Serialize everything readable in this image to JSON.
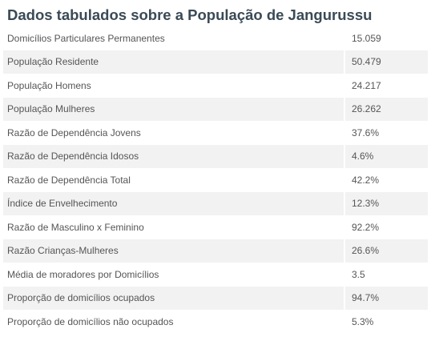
{
  "title": "Dados tabulados sobre a População de Jangurussu",
  "rows": [
    {
      "label": "Domicílios Particulares Permanentes",
      "value": "15.059"
    },
    {
      "label": "População Residente",
      "value": "50.479"
    },
    {
      "label": "População Homens",
      "value": "24.217"
    },
    {
      "label": "População Mulheres",
      "value": "26.262"
    },
    {
      "label": "Razão de Dependência Jovens",
      "value": "37.6%"
    },
    {
      "label": "Razão de Dependência Idosos",
      "value": "4.6%"
    },
    {
      "label": "Razão de Dependência Total",
      "value": "42.2%"
    },
    {
      "label": "Índice de Envelhecimento",
      "value": "12.3%"
    },
    {
      "label": "Razão de Masculino x Feminino",
      "value": "92.2%"
    },
    {
      "label": "Razão Crianças-Mulheres",
      "value": "26.6%"
    },
    {
      "label": "Média de moradores por Domicílios",
      "value": "3.5"
    },
    {
      "label": "Proporção de domicílios ocupados",
      "value": "94.7%"
    },
    {
      "label": "Proporção de domicílios não ocupados",
      "value": "5.3%"
    }
  ]
}
